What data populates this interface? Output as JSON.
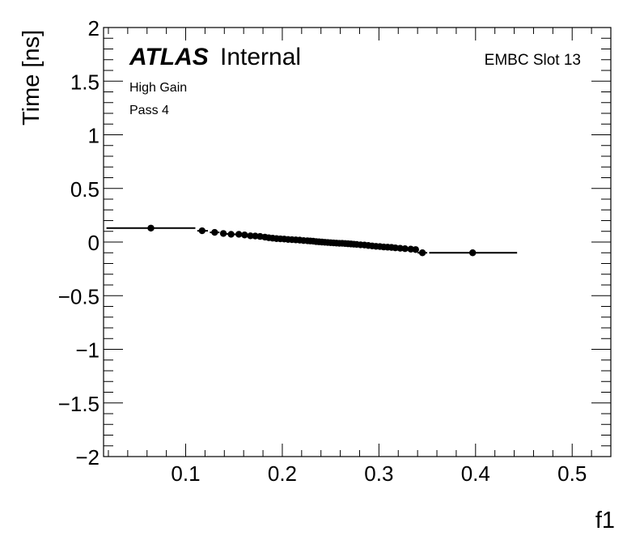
{
  "chart_data": {
    "type": "scatter",
    "title": "",
    "xlabel": "f1",
    "ylabel": "Time [ns]",
    "xlim": [
      0.015,
      0.54
    ],
    "ylim": [
      -2,
      2
    ],
    "xticks": [
      {
        "value": 0.1,
        "label": "0.1"
      },
      {
        "value": 0.2,
        "label": "0.2"
      },
      {
        "value": 0.3,
        "label": "0.3"
      },
      {
        "value": 0.4,
        "label": "0.4"
      },
      {
        "value": 0.5,
        "label": "0.5"
      }
    ],
    "yticks": [
      {
        "value": 2,
        "label": "2"
      },
      {
        "value": 1.5,
        "label": "1.5"
      },
      {
        "value": 1,
        "label": "1"
      },
      {
        "value": 0.5,
        "label": "0.5"
      },
      {
        "value": 0,
        "label": "0"
      },
      {
        "value": -0.5,
        "label": "−0.5"
      },
      {
        "value": -1,
        "label": "−1"
      },
      {
        "value": -1.5,
        "label": "−1.5"
      },
      {
        "value": -2,
        "label": "−2"
      }
    ],
    "grid": false,
    "annotations": {
      "experiment": "ATLAS",
      "status": "Internal",
      "region": "EMBC Slot 13",
      "gain": "High Gain",
      "pass": "Pass 4"
    },
    "points": [
      {
        "x": 0.064,
        "y": 0.13,
        "xerr": [
          0.018,
          0.11
        ]
      },
      {
        "x": 0.117,
        "y": 0.105,
        "xerr": [
          0.112,
          0.123
        ]
      },
      {
        "x": 0.13,
        "y": 0.09,
        "xerr": [
          0.125,
          0.135
        ]
      },
      {
        "x": 0.139,
        "y": 0.08
      },
      {
        "x": 0.147,
        "y": 0.072
      },
      {
        "x": 0.155,
        "y": 0.072
      },
      {
        "x": 0.161,
        "y": 0.066
      },
      {
        "x": 0.167,
        "y": 0.058
      },
      {
        "x": 0.172,
        "y": 0.056
      },
      {
        "x": 0.177,
        "y": 0.052
      },
      {
        "x": 0.182,
        "y": 0.046
      },
      {
        "x": 0.186,
        "y": 0.04
      },
      {
        "x": 0.19,
        "y": 0.036
      },
      {
        "x": 0.194,
        "y": 0.032
      },
      {
        "x": 0.198,
        "y": 0.03
      },
      {
        "x": 0.202,
        "y": 0.028
      },
      {
        "x": 0.206,
        "y": 0.024
      },
      {
        "x": 0.21,
        "y": 0.022
      },
      {
        "x": 0.214,
        "y": 0.02
      },
      {
        "x": 0.218,
        "y": 0.018
      },
      {
        "x": 0.222,
        "y": 0.014
      },
      {
        "x": 0.226,
        "y": 0.012
      },
      {
        "x": 0.229,
        "y": 0.01
      },
      {
        "x": 0.232,
        "y": 0.008
      },
      {
        "x": 0.235,
        "y": 0.004
      },
      {
        "x": 0.238,
        "y": 0.002
      },
      {
        "x": 0.241,
        "y": 0.0
      },
      {
        "x": 0.244,
        "y": -0.002
      },
      {
        "x": 0.247,
        "y": -0.004
      },
      {
        "x": 0.25,
        "y": -0.006
      },
      {
        "x": 0.253,
        "y": -0.008
      },
      {
        "x": 0.256,
        "y": -0.01
      },
      {
        "x": 0.259,
        "y": -0.012
      },
      {
        "x": 0.262,
        "y": -0.012
      },
      {
        "x": 0.265,
        "y": -0.014
      },
      {
        "x": 0.268,
        "y": -0.016
      },
      {
        "x": 0.271,
        "y": -0.018
      },
      {
        "x": 0.274,
        "y": -0.02
      },
      {
        "x": 0.277,
        "y": -0.022
      },
      {
        "x": 0.281,
        "y": -0.026
      },
      {
        "x": 0.285,
        "y": -0.028
      },
      {
        "x": 0.289,
        "y": -0.032
      },
      {
        "x": 0.293,
        "y": -0.036
      },
      {
        "x": 0.297,
        "y": -0.04
      },
      {
        "x": 0.301,
        "y": -0.042
      },
      {
        "x": 0.305,
        "y": -0.046
      },
      {
        "x": 0.309,
        "y": -0.048
      },
      {
        "x": 0.313,
        "y": -0.05
      },
      {
        "x": 0.317,
        "y": -0.054
      },
      {
        "x": 0.322,
        "y": -0.058
      },
      {
        "x": 0.327,
        "y": -0.062
      },
      {
        "x": 0.333,
        "y": -0.066
      },
      {
        "x": 0.338,
        "y": -0.07
      },
      {
        "x": 0.345,
        "y": -0.1,
        "xerr": [
          0.34,
          0.35
        ]
      },
      {
        "x": 0.397,
        "y": -0.1,
        "xerr": [
          0.352,
          0.443
        ]
      }
    ]
  }
}
